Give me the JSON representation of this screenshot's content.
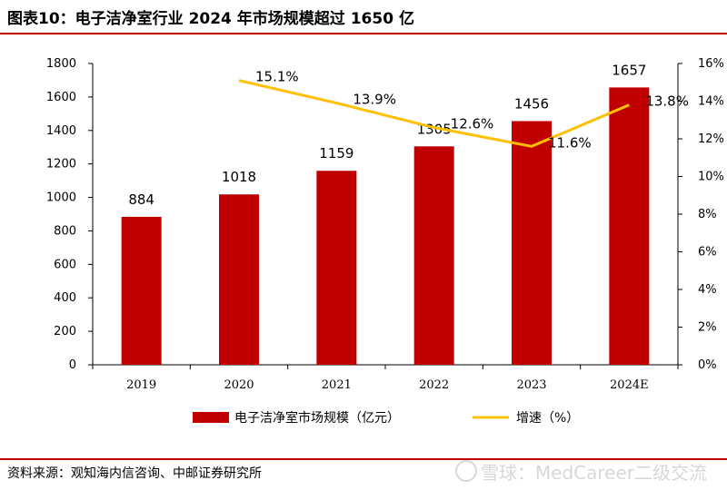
{
  "header": {
    "title": "图表10：电子洁净室行业 2024 年市场规模超过 1650 亿"
  },
  "source": "资料来源：观知海内信咨询、中邮证券研究所",
  "watermark": "雪球：MedCareer二级交流",
  "colors": {
    "bar": "#c00000",
    "line": "#ffc000",
    "rule": "#c00000"
  },
  "chart_data": {
    "type": "bar",
    "title": "",
    "categories": [
      "2019",
      "2020",
      "2021",
      "2022",
      "2023",
      "2024E"
    ],
    "series": [
      {
        "name": "电子洁净室市场规模（亿元）",
        "type": "bar",
        "axis": "left",
        "values": [
          884,
          1018,
          1159,
          1305,
          1456,
          1657
        ],
        "labels": [
          "884",
          "1018",
          "1159",
          "1305",
          "1456",
          "1657"
        ]
      },
      {
        "name": "增速（%）",
        "type": "line",
        "axis": "right",
        "values": [
          null,
          15.1,
          13.9,
          12.6,
          11.6,
          13.8
        ],
        "labels": [
          "",
          "15.1%",
          "13.9%",
          "12.6%",
          "11.6%",
          "13.8%"
        ]
      }
    ],
    "ylim": [
      0,
      1800
    ],
    "y_ticks": [
      "0",
      "200",
      "400",
      "600",
      "800",
      "1000",
      "1200",
      "1400",
      "1600",
      "1800"
    ],
    "y2lim": [
      0,
      16
    ],
    "y2_ticks": [
      "0%",
      "2%",
      "4%",
      "6%",
      "8%",
      "10%",
      "12%",
      "14%",
      "16%"
    ],
    "legend_position": "bottom-center",
    "grid": false
  }
}
